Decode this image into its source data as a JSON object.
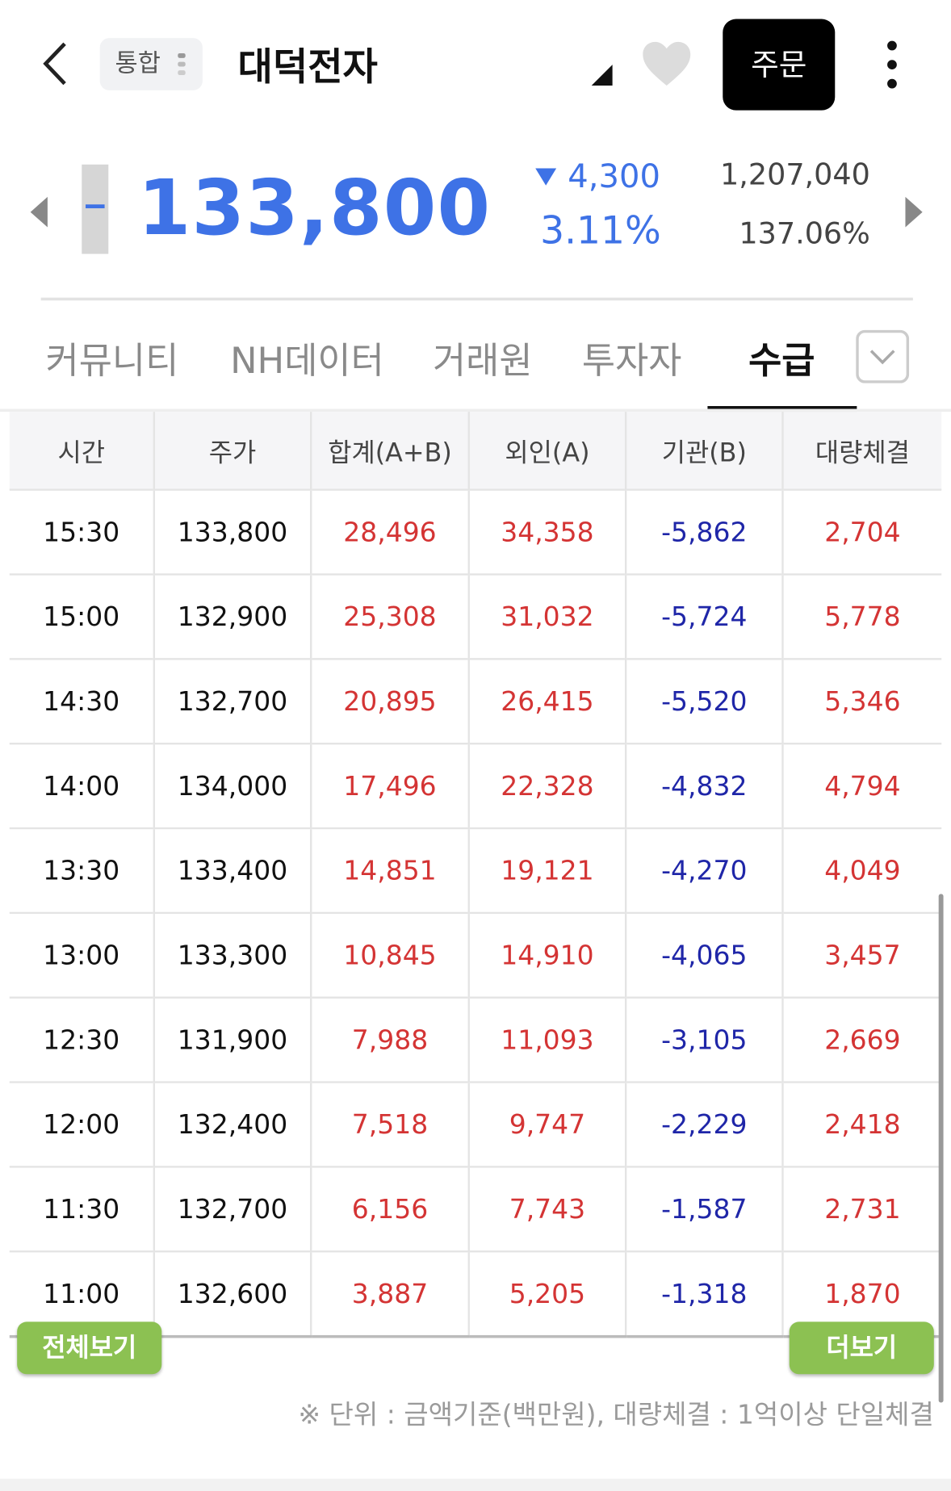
{
  "header": {
    "badge": "통합",
    "title": "대덕전자",
    "order_button": "주문"
  },
  "quote": {
    "price": "133,800",
    "change": "4,300",
    "change_rate": "3.11%",
    "volume": "1,207,040",
    "volume_rate": "137.06%"
  },
  "tabs": [
    "커뮤니티",
    "NH데이터",
    "거래원",
    "투자자",
    "수급"
  ],
  "table": {
    "columns": [
      "시간",
      "주가",
      "합계(A+B)",
      "외인(A)",
      "기관(B)",
      "대량체결"
    ],
    "rows": [
      [
        "15:30",
        "133,800",
        "28,496",
        "34,358",
        "-5,862",
        "2,704"
      ],
      [
        "15:00",
        "132,900",
        "25,308",
        "31,032",
        "-5,724",
        "5,778"
      ],
      [
        "14:30",
        "132,700",
        "20,895",
        "26,415",
        "-5,520",
        "5,346"
      ],
      [
        "14:00",
        "134,000",
        "17,496",
        "22,328",
        "-4,832",
        "4,794"
      ],
      [
        "13:30",
        "133,400",
        "14,851",
        "19,121",
        "-4,270",
        "4,049"
      ],
      [
        "13:00",
        "133,300",
        "10,845",
        "14,910",
        "-4,065",
        "3,457"
      ],
      [
        "12:30",
        "131,900",
        "7,988",
        "11,093",
        "-3,105",
        "2,669"
      ],
      [
        "12:00",
        "132,400",
        "7,518",
        "9,747",
        "-2,229",
        "2,418"
      ],
      [
        "11:30",
        "132,700",
        "6,156",
        "7,743",
        "-1,587",
        "2,731"
      ],
      [
        "11:00",
        "132,600",
        "3,887",
        "5,205",
        "-1,318",
        "1,870"
      ]
    ]
  },
  "buttons": {
    "view_all": "전체보기",
    "more": "더보기"
  },
  "note": "※ 단위 : 금액기준(백만원), 대량체결 : 1억이상 단일체결"
}
